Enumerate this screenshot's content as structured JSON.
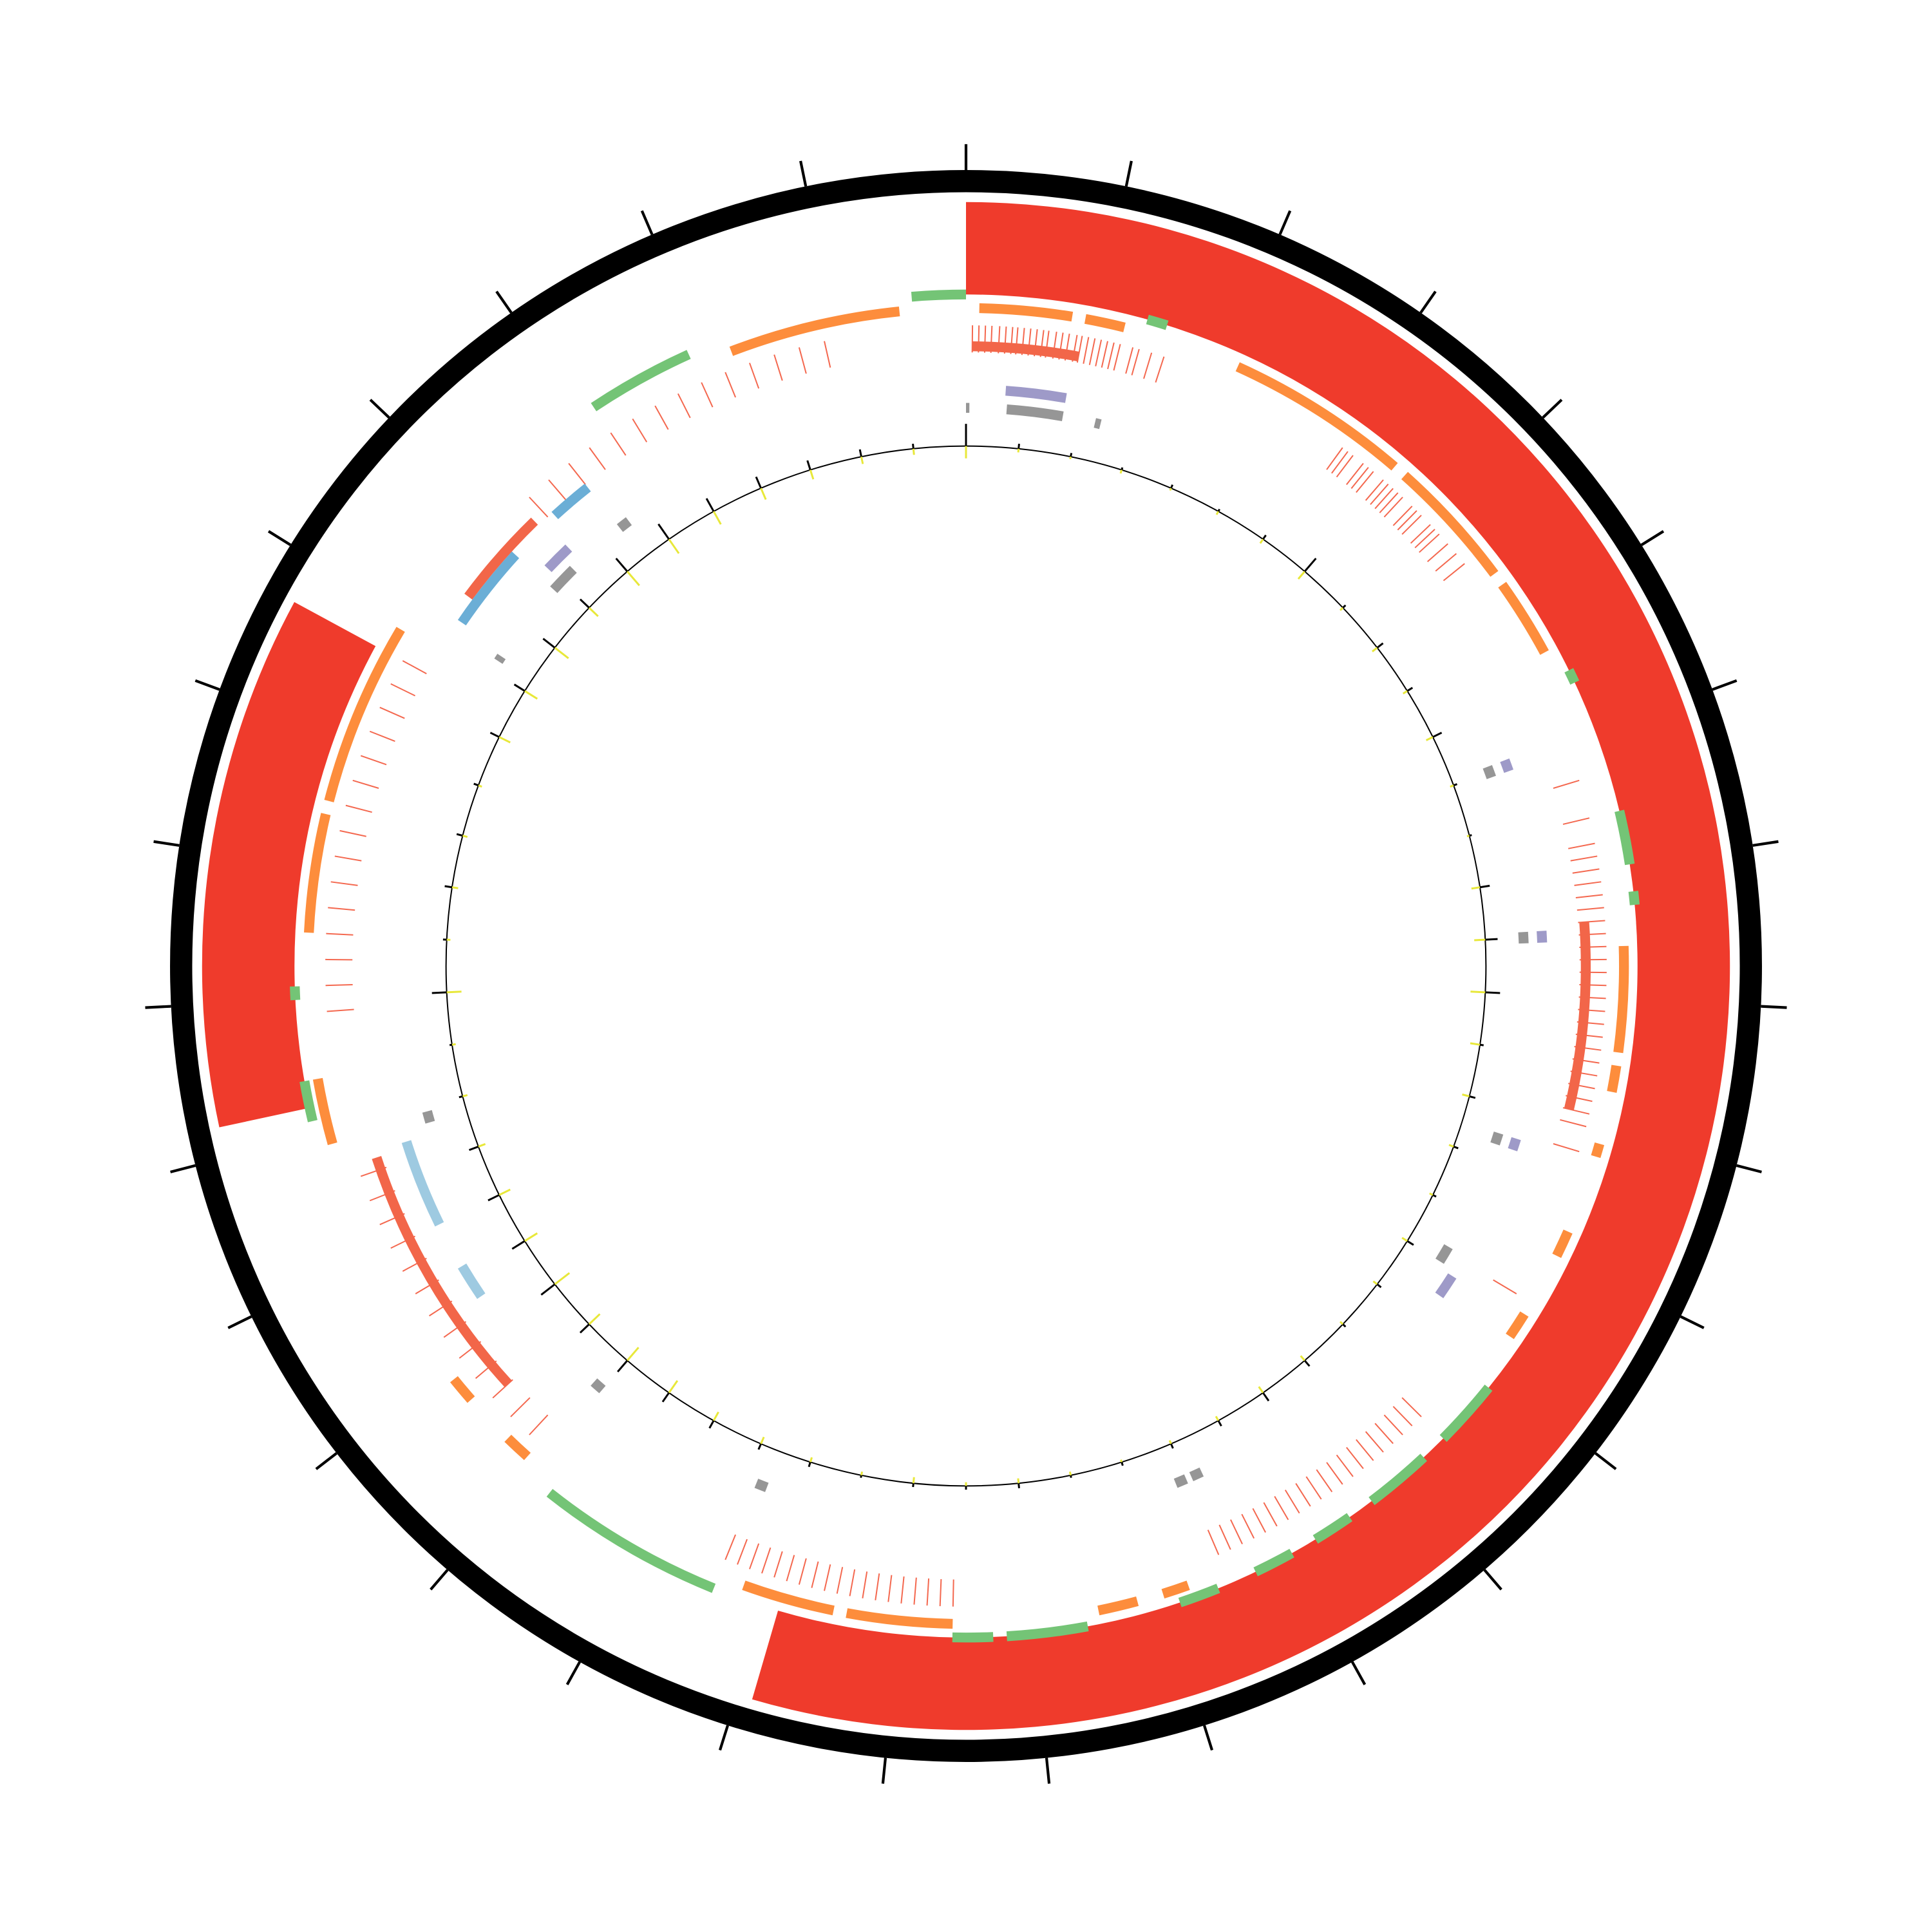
{
  "chart_data": {
    "type": "circular",
    "xlim": [
      0,
      31
    ],
    "xticks": [
      0,
      1,
      2,
      3,
      4,
      5,
      6,
      7,
      8,
      9,
      10,
      11,
      12,
      13,
      14,
      15,
      16,
      17,
      18,
      19,
      20,
      21,
      22,
      23,
      24,
      25,
      26,
      27,
      28,
      29,
      30
    ],
    "tracks": [
      {
        "kind": "arc",
        "color": "#ef3b2c",
        "segments": [
          [
            0,
            16.9
          ],
          [
            22.2,
            25.7
          ]
        ]
      },
      {
        "kind": "arc",
        "color": "#74c476",
        "segments": [
          [
            30.6,
            31.0
          ],
          [
            1.35,
            1.5
          ],
          [
            5.5,
            5.6
          ],
          [
            6.6,
            7.0
          ],
          [
            7.2,
            7.3
          ],
          [
            11.1,
            11.6
          ],
          [
            11.8,
            12.3
          ],
          [
            12.5,
            12.8
          ],
          [
            13.0,
            13.3
          ],
          [
            13.6,
            13.9
          ],
          [
            14.6,
            15.2
          ],
          [
            15.3,
            15.6
          ],
          [
            17.4,
            18.8
          ],
          [
            22.1,
            22.4
          ],
          [
            23.0,
            23.1
          ],
          [
            28.1,
            28.9
          ]
        ]
      },
      {
        "kind": "arc",
        "color": "#fd8d3c",
        "segments": [
          [
            0.1,
            0.8
          ],
          [
            0.9,
            1.2
          ],
          [
            2.1,
            3.5
          ],
          [
            3.6,
            4.6
          ],
          [
            4.7,
            5.3
          ],
          [
            7.6,
            8.4
          ],
          [
            8.5,
            8.7
          ],
          [
            9.1,
            9.2
          ],
          [
            9.8,
            10.0
          ],
          [
            10.5,
            10.7
          ],
          [
            13.8,
            14.0
          ],
          [
            14.2,
            14.5
          ],
          [
            15.6,
            16.4
          ],
          [
            16.5,
            17.2
          ],
          [
            19.1,
            19.3
          ],
          [
            19.7,
            19.9
          ],
          [
            21.9,
            22.4
          ],
          [
            23.5,
            24.4
          ],
          [
            24.5,
            25.9
          ],
          [
            29.2,
            30.5
          ]
        ]
      },
      {
        "kind": "tick",
        "color": "#f4684f",
        "positions": [
          0.05,
          0.1,
          0.15,
          0.2,
          0.26,
          0.31,
          0.36,
          0.4,
          0.45,
          0.5,
          0.55,
          0.6,
          0.64,
          0.7,
          0.75,
          0.8,
          0.86,
          0.9,
          0.95,
          1.0,
          1.05,
          1.1,
          1.15,
          1.2,
          1.3,
          1.35,
          1.45,
          1.55,
          3.1,
          3.15,
          3.2,
          3.3,
          3.35,
          3.4,
          3.5,
          3.55,
          3.6,
          3.65,
          3.7,
          3.8,
          3.85,
          3.9,
          4.0,
          4.05,
          4.1,
          4.2,
          4.3,
          4.4,
          6.3,
          6.6,
          6.8,
          6.9,
          7.0,
          7.1,
          7.2,
          7.3,
          7.4,
          7.5,
          7.6,
          7.7,
          7.8,
          7.9,
          8.0,
          8.1,
          8.2,
          8.3,
          8.4,
          8.5,
          8.6,
          8.7,
          8.8,
          8.9,
          9.0,
          9.2,
          10.4,
          11.6,
          11.7,
          11.8,
          11.9,
          12.0,
          12.1,
          12.2,
          12.3,
          12.4,
          12.5,
          12.6,
          12.7,
          12.8,
          12.9,
          13.0,
          13.1,
          13.2,
          13.3,
          13.4,
          13.5,
          15.6,
          15.7,
          15.8,
          15.9,
          16.0,
          16.1,
          16.2,
          16.3,
          16.4,
          16.5,
          16.6,
          16.7,
          16.8,
          16.9,
          17.0,
          17.1,
          17.2,
          17.3,
          17.4,
          19.2,
          19.4,
          19.6,
          19.8,
          20.0,
          20.2,
          20.4,
          20.6,
          20.8,
          21.0,
          21.2,
          21.4,
          21.6,
          22.9,
          23.1,
          23.3,
          23.5,
          23.7,
          23.9,
          24.1,
          24.3,
          24.5,
          24.7,
          24.9,
          25.1,
          25.3,
          25.5,
          25.7,
          27.3,
          27.5,
          27.7,
          27.9,
          28.1,
          28.3,
          28.5,
          28.7,
          28.9,
          29.1,
          29.3,
          29.5,
          29.7,
          29.9
        ]
      },
      {
        "kind": "arc",
        "color": "#f26649",
        "segments": [
          [
            0.05,
            0.9
          ],
          [
            7.4,
            8.9
          ],
          [
            19.6,
            21.7
          ],
          [
            26.4,
            27.2
          ]
        ]
      },
      {
        "kind": "arc",
        "color": "#9e9ac8",
        "segments": [
          [
            0.34,
            0.86
          ],
          [
            27.0,
            27.25
          ],
          [
            10.55,
            10.75
          ],
          [
            5.95,
            6.05
          ],
          [
            7.45,
            7.55
          ],
          [
            9.25,
            9.35
          ]
        ]
      },
      {
        "kind": "arc",
        "color": "#969696",
        "segments": [
          [
            0.36,
            0.86
          ],
          [
            26.9,
            27.15
          ],
          [
            10.35,
            10.5
          ],
          [
            5.95,
            6.05
          ],
          [
            7.45,
            7.55
          ],
          [
            9.25,
            9.35
          ],
          [
            0.0,
            0.03
          ],
          [
            1.15,
            1.2
          ],
          [
            13.35,
            13.45
          ],
          [
            13.5,
            13.6
          ],
          [
            17.3,
            17.4
          ],
          [
            19.0,
            19.1
          ],
          [
            21.85,
            21.95
          ],
          [
            26.1,
            26.15
          ],
          [
            27.7,
            27.8
          ]
        ]
      },
      {
        "kind": "arc",
        "color": "#6baed6",
        "segments": [
          [
            27.35,
            27.7
          ],
          [
            26.2,
            26.9
          ]
        ]
      },
      {
        "kind": "arc",
        "color": "#9ecae1",
        "segments": [
          [
            21.0,
            21.75
          ],
          [
            20.3,
            20.6
          ]
        ]
      },
      {
        "kind": "histogram",
        "ylim": [
          -40,
          40
        ],
        "x": [
          0,
          0.5,
          1,
          1.5,
          2,
          2.5,
          3,
          3.5,
          4,
          4.5,
          5,
          5.5,
          6,
          6.5,
          7,
          7.5,
          8,
          8.5,
          9,
          9.5,
          10,
          10.5,
          11,
          11.5,
          12,
          12.5,
          13,
          13.5,
          14,
          14.5,
          15,
          15.5,
          16,
          16.5,
          17,
          17.5,
          18,
          18.5,
          19,
          19.5,
          20,
          20.5,
          21,
          21.5,
          22,
          22.5,
          23,
          23.5,
          24,
          24.5,
          25,
          25.5,
          26,
          26.5,
          27,
          27.5,
          28,
          28.5,
          29,
          29.5,
          30,
          30.5
        ],
        "series": [
          {
            "color": "#e8e83a",
            "values": [
              -10,
              -3,
              -2,
              -3,
              -2,
              -3,
              -4,
              -8,
              -3,
              -5,
              -4,
              -6,
              -3,
              -2,
              -7,
              -9,
              -12,
              -8,
              -6,
              -4,
              -3,
              -5,
              -4,
              -3,
              -5,
              -6,
              -4,
              -3,
              -2,
              -3,
              -4,
              -3,
              -5,
              -3,
              -4,
              -6,
              -8,
              -12,
              -14,
              -12,
              -15,
              -12,
              -10,
              -6,
              -4,
              -3,
              -12,
              -3,
              -5,
              -4,
              -3,
              -10,
              -12,
              -14,
              -10,
              -15,
              -14,
              -12,
              -10,
              -8,
              -6,
              -5
            ]
          },
          {
            "color": "#000000",
            "values": [
              18,
              4,
              3,
              2,
              3,
              2,
              4,
              14,
              3,
              6,
              5,
              8,
              3,
              2,
              8,
              10,
              12,
              3,
              5,
              4,
              3,
              6,
              4,
              3,
              6,
              8,
              5,
              4,
              3,
              2,
              4,
              3,
              3,
              2,
              4,
              5,
              7,
              9,
              12,
              10,
              14,
              12,
              10,
              8,
              3,
              2,
              12,
              3,
              6,
              5,
              4,
              8,
              10,
              12,
              10,
              14,
              15,
              12,
              10,
              8,
              6,
              4
            ]
          }
        ]
      }
    ]
  }
}
